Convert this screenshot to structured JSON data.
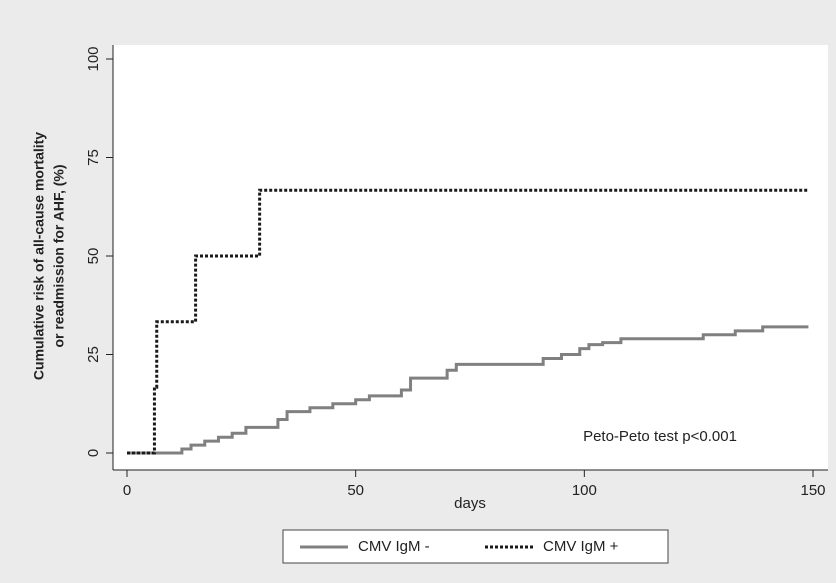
{
  "chart_data": {
    "type": "step",
    "ylabel": [
      "Cumulative risk of all-cause mortality",
      "or readmission for AHF, (%)"
    ],
    "xlabel": "days",
    "annotation": "Peto-Peto test p<0.001",
    "xlim": [
      0,
      150
    ],
    "xticks": [
      0,
      50,
      100,
      150
    ],
    "ylim": [
      0,
      100
    ],
    "yticks": [
      0,
      25,
      50,
      75,
      100
    ],
    "legend": "bottom",
    "series": [
      {
        "name": "CMV IgM -",
        "color": "#808080",
        "style": "solid",
        "x": [
          0,
          12,
          14,
          17,
          20,
          23,
          26,
          33,
          35,
          40,
          45,
          50,
          53,
          60,
          62,
          70,
          72,
          91,
          95,
          99,
          101,
          104,
          108,
          126,
          133,
          139,
          149
        ],
        "values": [
          0,
          1,
          2,
          3,
          4,
          5,
          6.5,
          8.5,
          10.5,
          11.5,
          12.5,
          13.5,
          14.5,
          16,
          19,
          21,
          22.5,
          24,
          25,
          26.5,
          27.5,
          28,
          29,
          30,
          31,
          32,
          32
        ]
      },
      {
        "name": "CMV IgM +",
        "color": "#1a1a1a",
        "style": "dotted",
        "x": [
          0,
          6,
          6.5,
          15,
          29,
          149
        ],
        "values": [
          0,
          16.7,
          33.3,
          50,
          66.7,
          66.7
        ]
      }
    ]
  }
}
